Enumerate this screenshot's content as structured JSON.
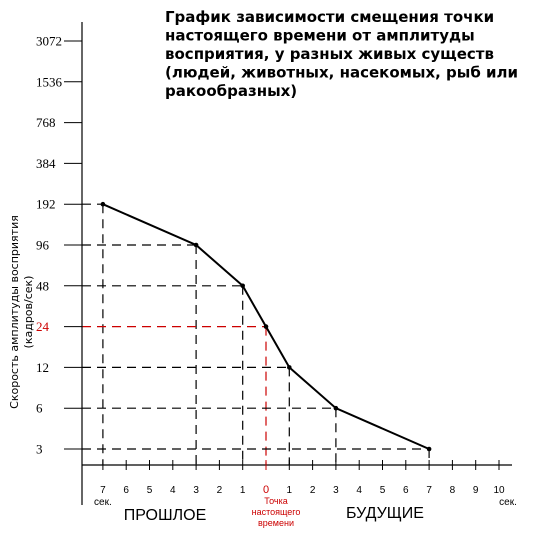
{
  "chart_data": {
    "type": "line",
    "title_lines": [
      "График зависимости смещения точки",
      "настоящего времени от амплитуды",
      "восприятия, у разных живых существ",
      "(людей, животных, насекомых, рыб или",
      "ракообразных)"
    ],
    "ylabel_lines": [
      "Скорость амплитуды восприятия",
      "(кадров/сек)"
    ],
    "y_scale": "log2",
    "y_ticks": [
      "3072",
      "1536",
      "768",
      "384",
      "192",
      "96",
      "48",
      "24",
      "12",
      "6",
      "3"
    ],
    "y_tick_values": [
      3072,
      1536,
      768,
      384,
      192,
      96,
      48,
      24,
      12,
      6,
      3
    ],
    "highlight_y_value": 24,
    "x_ticks_past": [
      "7",
      "6",
      "5",
      "4",
      "3",
      "2",
      "1"
    ],
    "x_ticks_past_values": [
      -7,
      -6,
      -5,
      -4,
      -3,
      -2,
      -1
    ],
    "x_tick_zero": "0",
    "x_ticks_future": [
      "1",
      "2",
      "3",
      "4",
      "5",
      "6",
      "7",
      "8",
      "9",
      "10"
    ],
    "x_ticks_future_values": [
      1,
      2,
      3,
      4,
      5,
      6,
      7,
      8,
      9,
      10
    ],
    "x_unit_left": "сек.",
    "x_unit_right": "сек.",
    "xlim": [
      -7,
      10
    ],
    "ylim": [
      3,
      3072
    ],
    "series": [
      {
        "x": [
          -7,
          -3,
          -1,
          0,
          1,
          3,
          7
        ],
        "y": [
          192,
          96,
          48,
          24,
          12,
          6,
          3
        ]
      }
    ],
    "now_point_label_lines": [
      "Точка",
      "настоящего",
      "времени"
    ],
    "zone_labels": {
      "past": "ПРОШЛОЕ",
      "future": "БУДУЩИЕ"
    },
    "colors": {
      "line": "#000000",
      "guides": "#000000",
      "highlight": "#cc0000"
    }
  }
}
